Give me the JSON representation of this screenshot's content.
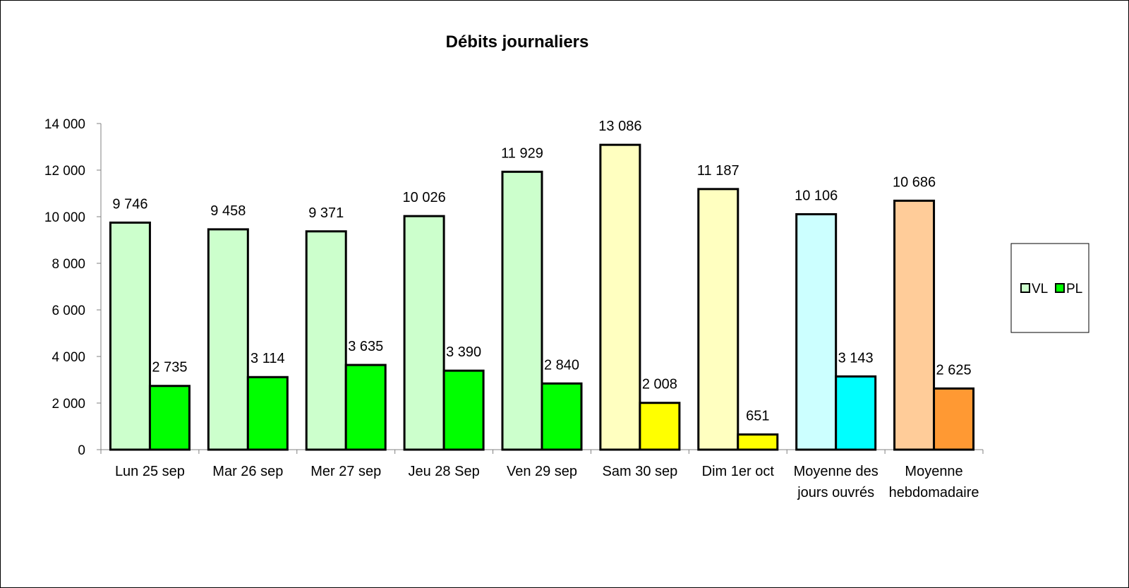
{
  "chart_data": {
    "type": "bar",
    "title": "Débits journaliers",
    "xlabel": "",
    "ylabel": "",
    "ylim": [
      0,
      14000
    ],
    "yticks": [
      0,
      2000,
      4000,
      6000,
      8000,
      10000,
      12000,
      14000
    ],
    "ytick_labels": [
      "0",
      "2 000",
      "4 000",
      "6 000",
      "8 000",
      "10 000",
      "12 000",
      "14 000"
    ],
    "grid": false,
    "legend_position": "right",
    "categories": [
      [
        "Lun 25 sep"
      ],
      [
        "Mar 26 sep"
      ],
      [
        "Mer 27 sep"
      ],
      [
        "Jeu 28 Sep"
      ],
      [
        "Ven 29 sep"
      ],
      [
        "Sam 30 sep"
      ],
      [
        "Dim 1er oct"
      ],
      [
        "Moyenne des",
        "jours ouvrés"
      ],
      [
        "Moyenne",
        "hebdomadaire"
      ]
    ],
    "series": [
      {
        "name": "VL",
        "values": [
          9746,
          9458,
          9371,
          10026,
          11929,
          13086,
          11187,
          10106,
          10686
        ],
        "labels": [
          "9 746",
          "9 458",
          "9 371",
          "10 026",
          "11 929",
          "13 086",
          "11 187",
          "10 106",
          "10 686"
        ],
        "legend_color": "#ccffcc",
        "colors": [
          "#ccffcc",
          "#ccffcc",
          "#ccffcc",
          "#ccffcc",
          "#ccffcc",
          "#ffffc0",
          "#ffffc0",
          "#ccffff",
          "#ffcc99"
        ]
      },
      {
        "name": "PL",
        "values": [
          2735,
          3114,
          3635,
          3390,
          2840,
          2008,
          651,
          3143,
          2625
        ],
        "labels": [
          "2 735",
          "3 114",
          "3 635",
          "3 390",
          "2 840",
          "2 008",
          "651",
          "3 143",
          "2 625"
        ],
        "legend_color": "#00ff00",
        "colors": [
          "#00ff00",
          "#00ff00",
          "#00ff00",
          "#00ff00",
          "#00ff00",
          "#ffff00",
          "#ffff00",
          "#00ffff",
          "#ff9933"
        ]
      }
    ]
  }
}
